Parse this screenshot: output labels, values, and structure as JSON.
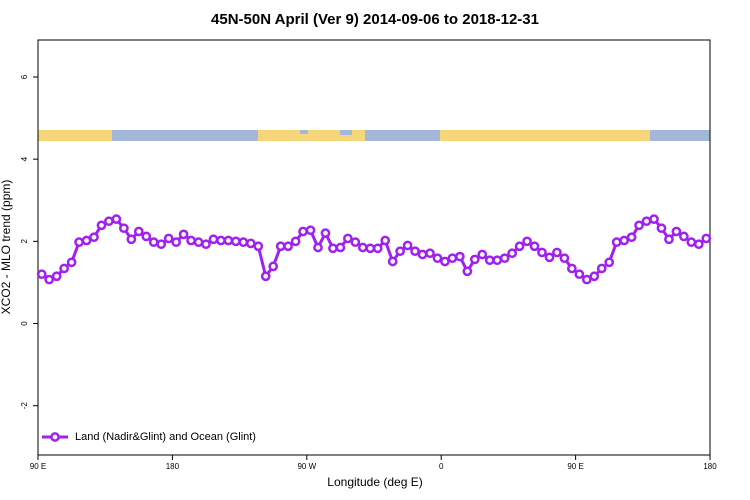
{
  "chart_data": {
    "type": "line",
    "title": "45N-50N April (Ver 9)   2014-09-06 to 2018-12-31",
    "x_label": "Longitude (deg E)",
    "y_label": "XCO2 - MLO trend (ppm)",
    "x": [
      92.5,
      97.5,
      102.5,
      107.5,
      112.5,
      117.5,
      122.5,
      127.5,
      132.5,
      137.5,
      142.5,
      147.5,
      152.5,
      157.5,
      162.5,
      167.5,
      172.5,
      177.5,
      182.5,
      187.5,
      192.5,
      197.5,
      202.5,
      207.5,
      212.5,
      217.5,
      222.5,
      227.5,
      232.5,
      237.5,
      242.5,
      247.5,
      252.5,
      257.5,
      262.5,
      267.5,
      272.5,
      277.5,
      282.5,
      287.5,
      292.5,
      297.5,
      302.5,
      307.5,
      312.5,
      317.5,
      322.5,
      327.5,
      332.5,
      337.5,
      342.5,
      347.5,
      352.5,
      357.5,
      362.5,
      367.5,
      372.5,
      377.5,
      382.5,
      387.5,
      392.5,
      397.5,
      402.5,
      407.5,
      412.5,
      417.5,
      422.5,
      427.5,
      432.5,
      437.5,
      442.5,
      447.5,
      452.5,
      457.5,
      462.5,
      467.5,
      472.5,
      477.5,
      482.5,
      487.5,
      492.5,
      497.5,
      502.5,
      507.5,
      512.5,
      517.5,
      522.5,
      527.5,
      532.5,
      537.5
    ],
    "series": [
      {
        "name": "Land (Nadir&Glint) and Ocean (Glint)",
        "color": "#a020f0",
        "values": [
          1.2,
          1.07,
          1.15,
          1.34,
          1.49,
          1.98,
          2.02,
          2.1,
          2.39,
          2.49,
          2.54,
          2.32,
          2.05,
          2.24,
          2.12,
          1.98,
          1.93,
          2.07,
          1.98,
          2.17,
          2.02,
          1.98,
          1.93,
          2.05,
          2.02,
          2.02,
          2.0,
          1.98,
          1.95,
          1.88,
          1.15,
          1.39,
          1.88,
          1.88,
          2.0,
          2.24,
          2.27,
          1.85,
          2.2,
          1.83,
          1.85,
          2.07,
          1.98,
          1.85,
          1.83,
          1.83,
          2.02,
          1.51,
          1.76,
          1.9,
          1.76,
          1.68,
          1.71,
          1.59,
          1.51,
          1.59,
          1.63,
          1.27,
          1.56,
          1.68,
          1.54,
          1.54,
          1.59,
          1.71,
          1.88,
          2.0,
          1.88,
          1.73,
          1.61,
          1.73,
          1.59,
          1.34,
          1.2,
          1.07,
          1.15,
          1.34,
          1.49,
          1.98,
          2.02,
          2.1,
          2.39,
          2.49,
          2.54,
          2.32,
          2.05,
          2.24,
          2.12,
          1.98,
          1.93,
          2.07
        ]
      }
    ],
    "xlim": [
      90,
      540
    ],
    "xticks": [
      {
        "value": 90,
        "label": "90 E"
      },
      180,
      {
        "value": 270,
        "label": "90 W"
      },
      {
        "value": 360,
        "label": "0"
      },
      {
        "value": 450,
        "label": "90 E"
      },
      {
        "value": 540,
        "label": "180"
      }
    ],
    "ylim": [
      -3.2,
      6.9
    ],
    "yticks": [
      -2,
      0,
      2,
      4,
      6
    ],
    "legend": "lower left"
  }
}
